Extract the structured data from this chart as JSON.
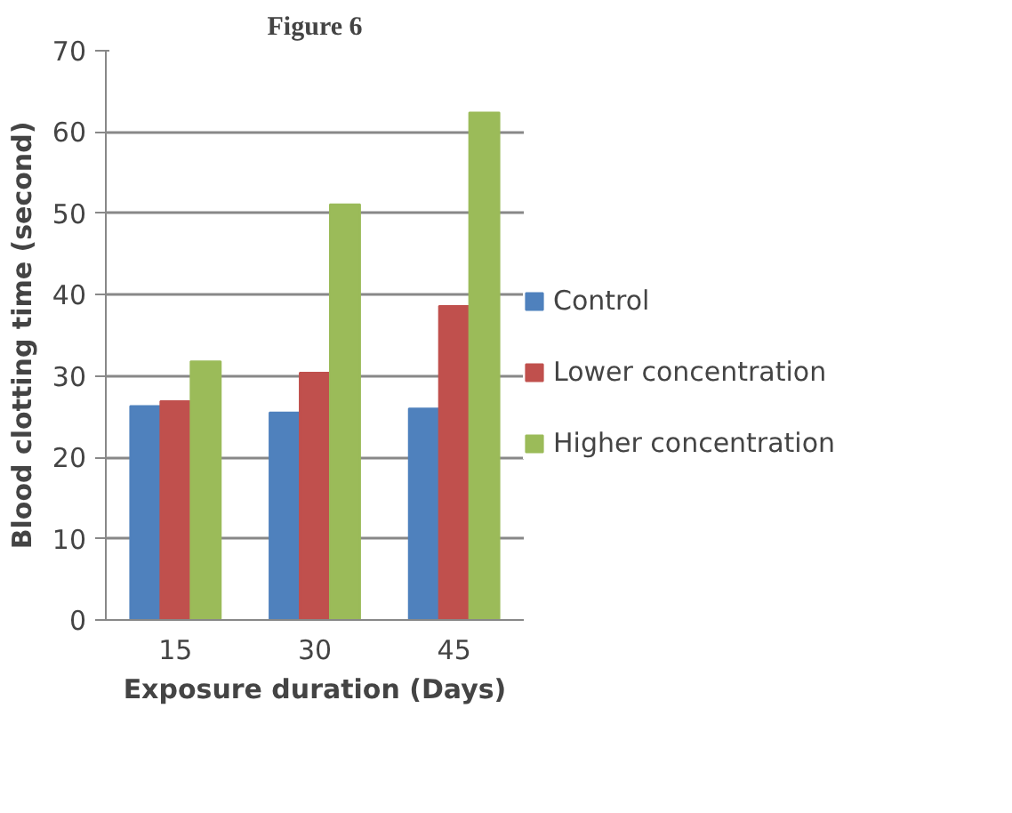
{
  "chart_data": {
    "type": "bar",
    "title": "Figure 6",
    "xlabel": "Exposure duration (Days)",
    "ylabel": "Blood clotting time (second)",
    "categories": [
      "15",
      "30",
      "45"
    ],
    "series": [
      {
        "name": "Control",
        "color": "#4f81bd",
        "values": [
          26.3,
          25.5,
          26.0
        ]
      },
      {
        "name": "Lower concentration",
        "color": "#c0504d",
        "values": [
          26.9,
          30.4,
          38.6
        ]
      },
      {
        "name": "Higher concentration",
        "color": "#9bbb59",
        "values": [
          31.8,
          51.1,
          62.4
        ]
      }
    ],
    "ylim": [
      0,
      70
    ],
    "yticks": [
      0,
      10,
      20,
      30,
      40,
      50,
      60,
      70
    ],
    "grid": "y",
    "legend": "right"
  }
}
